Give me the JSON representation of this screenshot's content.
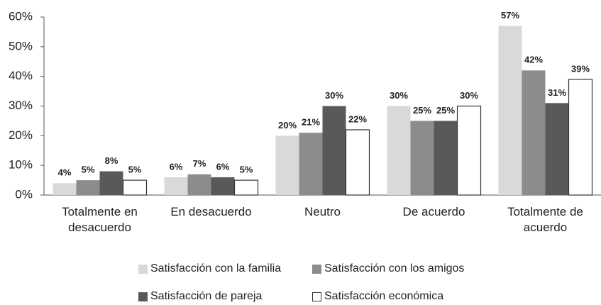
{
  "chart_data": {
    "type": "bar",
    "categories": [
      "Totalmente en desacuerdo",
      "En desacuerdo",
      "Neutro",
      "De acuerdo",
      "Totalmente de acuerdo"
    ],
    "series": [
      {
        "name": "Satisfacción con la familia",
        "color": "#d9d9d9",
        "values": [
          4,
          6,
          20,
          30,
          57
        ],
        "value_labels": [
          "4%",
          "6%",
          "20%",
          "30%",
          "57%"
        ]
      },
      {
        "name": "Satisfacción con los amigos",
        "color": "#8c8c8c",
        "values": [
          5,
          7,
          21,
          25,
          42
        ],
        "value_labels": [
          "5%",
          "7%",
          "21%",
          "25%",
          "42%"
        ]
      },
      {
        "name": "Satisfacción de pareja",
        "color": "#595959",
        "values": [
          8,
          6,
          30,
          25,
          31
        ],
        "value_labels": [
          "8%",
          "6%",
          "30%",
          "25%",
          "31%"
        ]
      },
      {
        "name": "Satisfacción económica",
        "color": "#ffffff",
        "values": [
          5,
          5,
          22,
          30,
          39
        ],
        "value_labels": [
          "5%",
          "5%",
          "22%",
          "30%",
          "39%"
        ]
      }
    ],
    "ylim": [
      0,
      60
    ],
    "yticks": [
      {
        "value": 0,
        "label": "0%"
      },
      {
        "value": 10,
        "label": "10%"
      },
      {
        "value": 20,
        "label": "20%"
      },
      {
        "value": 30,
        "label": "30%"
      },
      {
        "value": 40,
        "label": "40%"
      },
      {
        "value": 50,
        "label": "50%"
      },
      {
        "value": 60,
        "label": "60%"
      }
    ],
    "grid": false
  }
}
